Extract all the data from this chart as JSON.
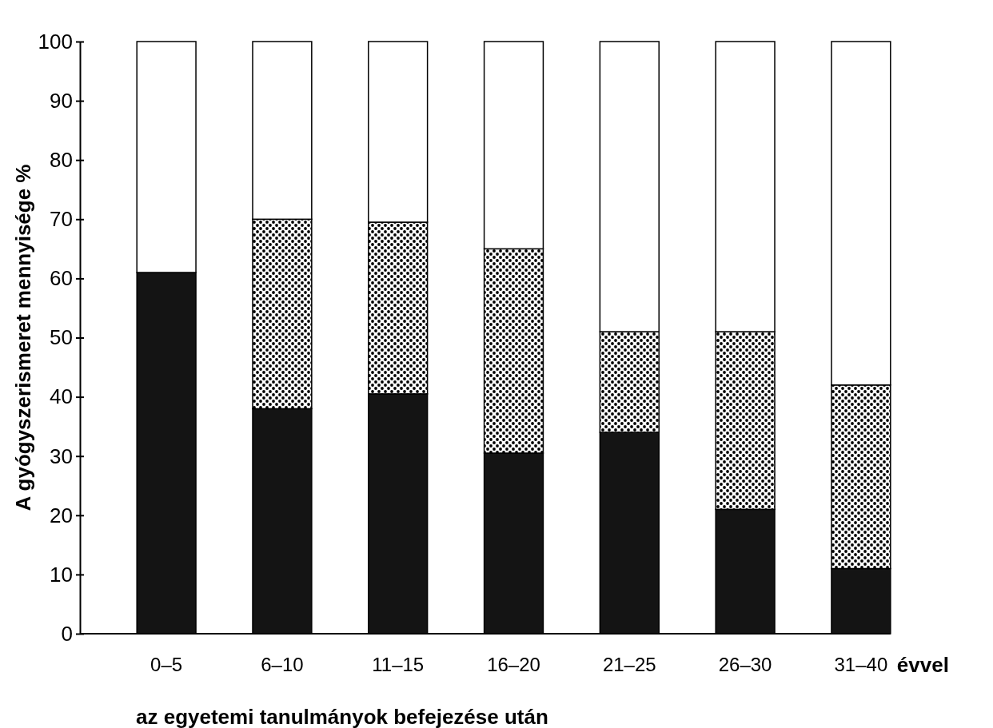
{
  "chart_data": {
    "type": "bar",
    "stacked": true,
    "categories": [
      "0–5",
      "6–10",
      "11–15",
      "16–20",
      "21–25",
      "26–30",
      "31–40"
    ],
    "series": [
      {
        "color": "#141414",
        "values": [
          61,
          38,
          40.5,
          30.5,
          34,
          21,
          11
        ]
      },
      {
        "color": "#000000",
        "values": [
          null,
          32,
          29,
          34.5,
          17,
          30,
          31
        ]
      },
      {
        "color": "#ffffff",
        "values": [
          39,
          30,
          30.5,
          35,
          49,
          49,
          58
        ]
      }
    ],
    "ylabel": "A gyógyszerismeret mennyisége %",
    "xlabel": "az egyetemi tanulmányok befejezése után",
    "annotations": [
      "évvel"
    ],
    "ylim": [
      0,
      100
    ],
    "yticks": [
      0,
      10,
      20,
      30,
      40,
      50,
      60,
      70,
      80,
      90,
      100
    ],
    "grid": false
  }
}
